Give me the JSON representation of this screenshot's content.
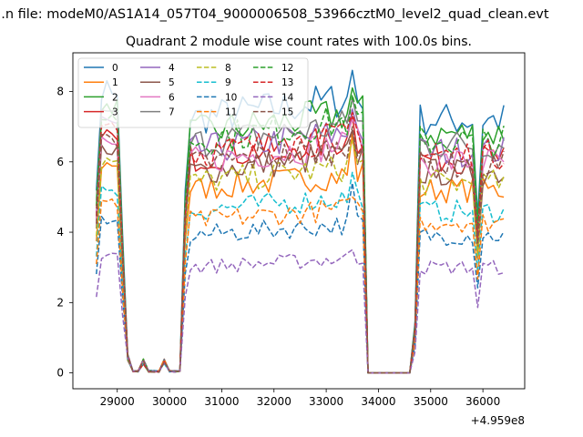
{
  "figure": {
    "suptitle": "...n file: modeM0/AS1A14_057T04_9000006508_53966cztM0_level2_quad_clean.evt",
    "offset_label": "+4.959e8"
  },
  "chart_data": {
    "type": "line",
    "title": "Quadrant 2 module wise count rates with 100.0s bins.",
    "xlabel": "",
    "ylabel": "",
    "x_offset": 495900000,
    "xlim": [
      28150,
      36800
    ],
    "ylim": [
      -0.45,
      9.1
    ],
    "xticks": [
      29000,
      30000,
      31000,
      32000,
      33000,
      34000,
      35000,
      36000
    ],
    "xtick_labels": [
      "29000",
      "30000",
      "31000",
      "32000",
      "33000",
      "34000",
      "35000",
      "36000"
    ],
    "yticks": [
      0,
      2,
      4,
      6,
      8
    ],
    "ytick_labels": [
      "0",
      "2",
      "4",
      "6",
      "8"
    ],
    "grid": false,
    "legend": {
      "placement": "upper-left",
      "columns": 4
    },
    "gti_segments": [
      {
        "x_start": 28600,
        "x_end": 30200
      },
      {
        "x_start": 30200,
        "x_end": 33800
      },
      {
        "x_start": 33800,
        "x_end": 34700
      },
      {
        "x_start": 34700,
        "x_end": 36400
      }
    ],
    "series": [
      {
        "name": "0",
        "color": "#1f77b4",
        "dash": "solid",
        "level": 7.2,
        "peak": 8.6
      },
      {
        "name": "1",
        "color": "#ff7f0e",
        "dash": "solid",
        "level": 5.2,
        "peak": 6.8
      },
      {
        "name": "2",
        "color": "#2ca02c",
        "dash": "solid",
        "level": 6.8,
        "peak": 8.1
      },
      {
        "name": "3",
        "color": "#d62728",
        "dash": "solid",
        "level": 6.1,
        "peak": 7.3
      },
      {
        "name": "4",
        "color": "#9467bd",
        "dash": "solid",
        "level": 6.3,
        "peak": 7.5
      },
      {
        "name": "5",
        "color": "#8c564b",
        "dash": "solid",
        "level": 5.7,
        "peak": 6.9
      },
      {
        "name": "6",
        "color": "#e377c2",
        "dash": "solid",
        "level": 6.0,
        "peak": 7.2
      },
      {
        "name": "7",
        "color": "#7f7f7f",
        "dash": "solid",
        "level": 6.5,
        "peak": 7.8
      },
      {
        "name": "8",
        "color": "#bcbd22",
        "dash": "dashed",
        "level": 5.4,
        "peak": 6.6
      },
      {
        "name": "9",
        "color": "#17becf",
        "dash": "dashed",
        "level": 4.6,
        "peak": 5.7
      },
      {
        "name": "10",
        "color": "#1f77b4",
        "dash": "dashed",
        "level": 3.9,
        "peak": 5.4
      },
      {
        "name": "11",
        "color": "#ff7f0e",
        "dash": "dashed",
        "level": 4.3,
        "peak": 5.0
      },
      {
        "name": "12",
        "color": "#2ca02c",
        "dash": "dashed",
        "level": 6.6,
        "peak": 7.9
      },
      {
        "name": "13",
        "color": "#d62728",
        "dash": "dashed",
        "level": 6.2,
        "peak": 7.4
      },
      {
        "name": "14",
        "color": "#9467bd",
        "dash": "dashed",
        "level": 3.0,
        "peak": 3.5
      },
      {
        "name": "15",
        "color": "#8c564b",
        "dash": "dashed",
        "level": 5.9,
        "peak": 7.0
      }
    ]
  }
}
